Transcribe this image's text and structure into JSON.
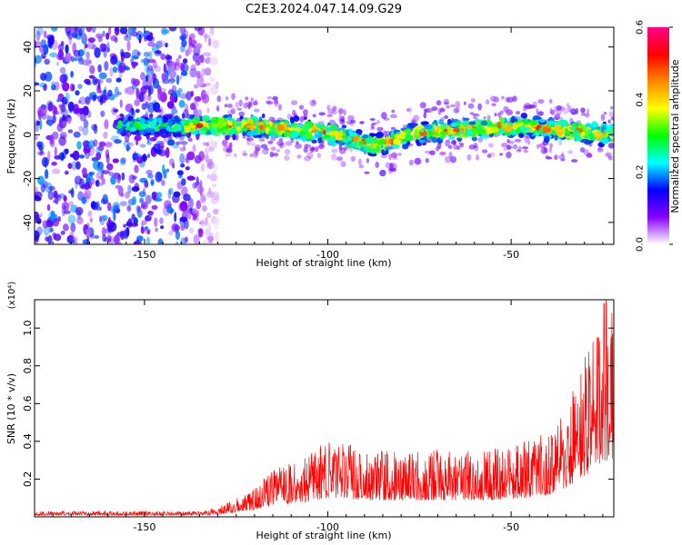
{
  "title": "C2E3.2024.047.14.09.G29",
  "chart_data": [
    {
      "type": "heatmap",
      "xlabel": "Height of straight line (km)",
      "ylabel": "Frequency (Hz)",
      "xlim": [
        -180,
        -22
      ],
      "ylim": [
        -50,
        49
      ],
      "xticks": [
        -150,
        -100,
        -50
      ],
      "yticks": [
        -40,
        -20,
        0,
        20,
        40
      ],
      "colorbar": {
        "label": "Normalized spectral amplitude",
        "range": [
          0.0,
          0.6
        ],
        "ticks": [
          0.0,
          0.2,
          0.4,
          0.6
        ],
        "colors": [
          "#ffffff",
          "#8800ff",
          "#0000ff",
          "#00ffff",
          "#00ff00",
          "#ffff00",
          "#ff8800",
          "#ff0000",
          "#ff0088"
        ]
      },
      "signal_band": {
        "x_start": -157,
        "center_freq_at": [
          [
            -157,
            4
          ],
          [
            -120,
            4
          ],
          [
            -100,
            1
          ],
          [
            -87,
            -5
          ],
          [
            -75,
            1
          ],
          [
            -50,
            4
          ],
          [
            -22,
            0
          ]
        ],
        "half_width_hz": 6
      },
      "noise_region": {
        "x_range": [
          -180,
          -130
        ],
        "freq_range": [
          -50,
          49
        ]
      }
    },
    {
      "type": "line",
      "xlabel": "Height of straight line (km)",
      "ylabel": "SNR (10 * v/v)",
      "y_multiplier": "(x10⁴)",
      "xlim": [
        -180,
        -22
      ],
      "ylim": [
        0,
        1.15
      ],
      "xticks": [
        -150,
        -100,
        -50
      ],
      "yticks": [
        0.2,
        0.4,
        0.6,
        0.8,
        1.0
      ],
      "series": [
        {
          "color": "#ff0000",
          "envelope": [
            [
              -180,
              0.03
            ],
            [
              -135,
              0.03
            ],
            [
              -130,
              0.05
            ],
            [
              -120,
              0.15
            ],
            [
              -115,
              0.25
            ],
            [
              -105,
              0.32
            ],
            [
              -100,
              0.4
            ],
            [
              -90,
              0.35
            ],
            [
              -80,
              0.35
            ],
            [
              -70,
              0.35
            ],
            [
              -60,
              0.35
            ],
            [
              -50,
              0.37
            ],
            [
              -40,
              0.45
            ],
            [
              -35,
              0.6
            ],
            [
              -30,
              0.85
            ],
            [
              -25,
              1.15
            ],
            [
              -22,
              1.1
            ]
          ]
        }
      ]
    }
  ]
}
